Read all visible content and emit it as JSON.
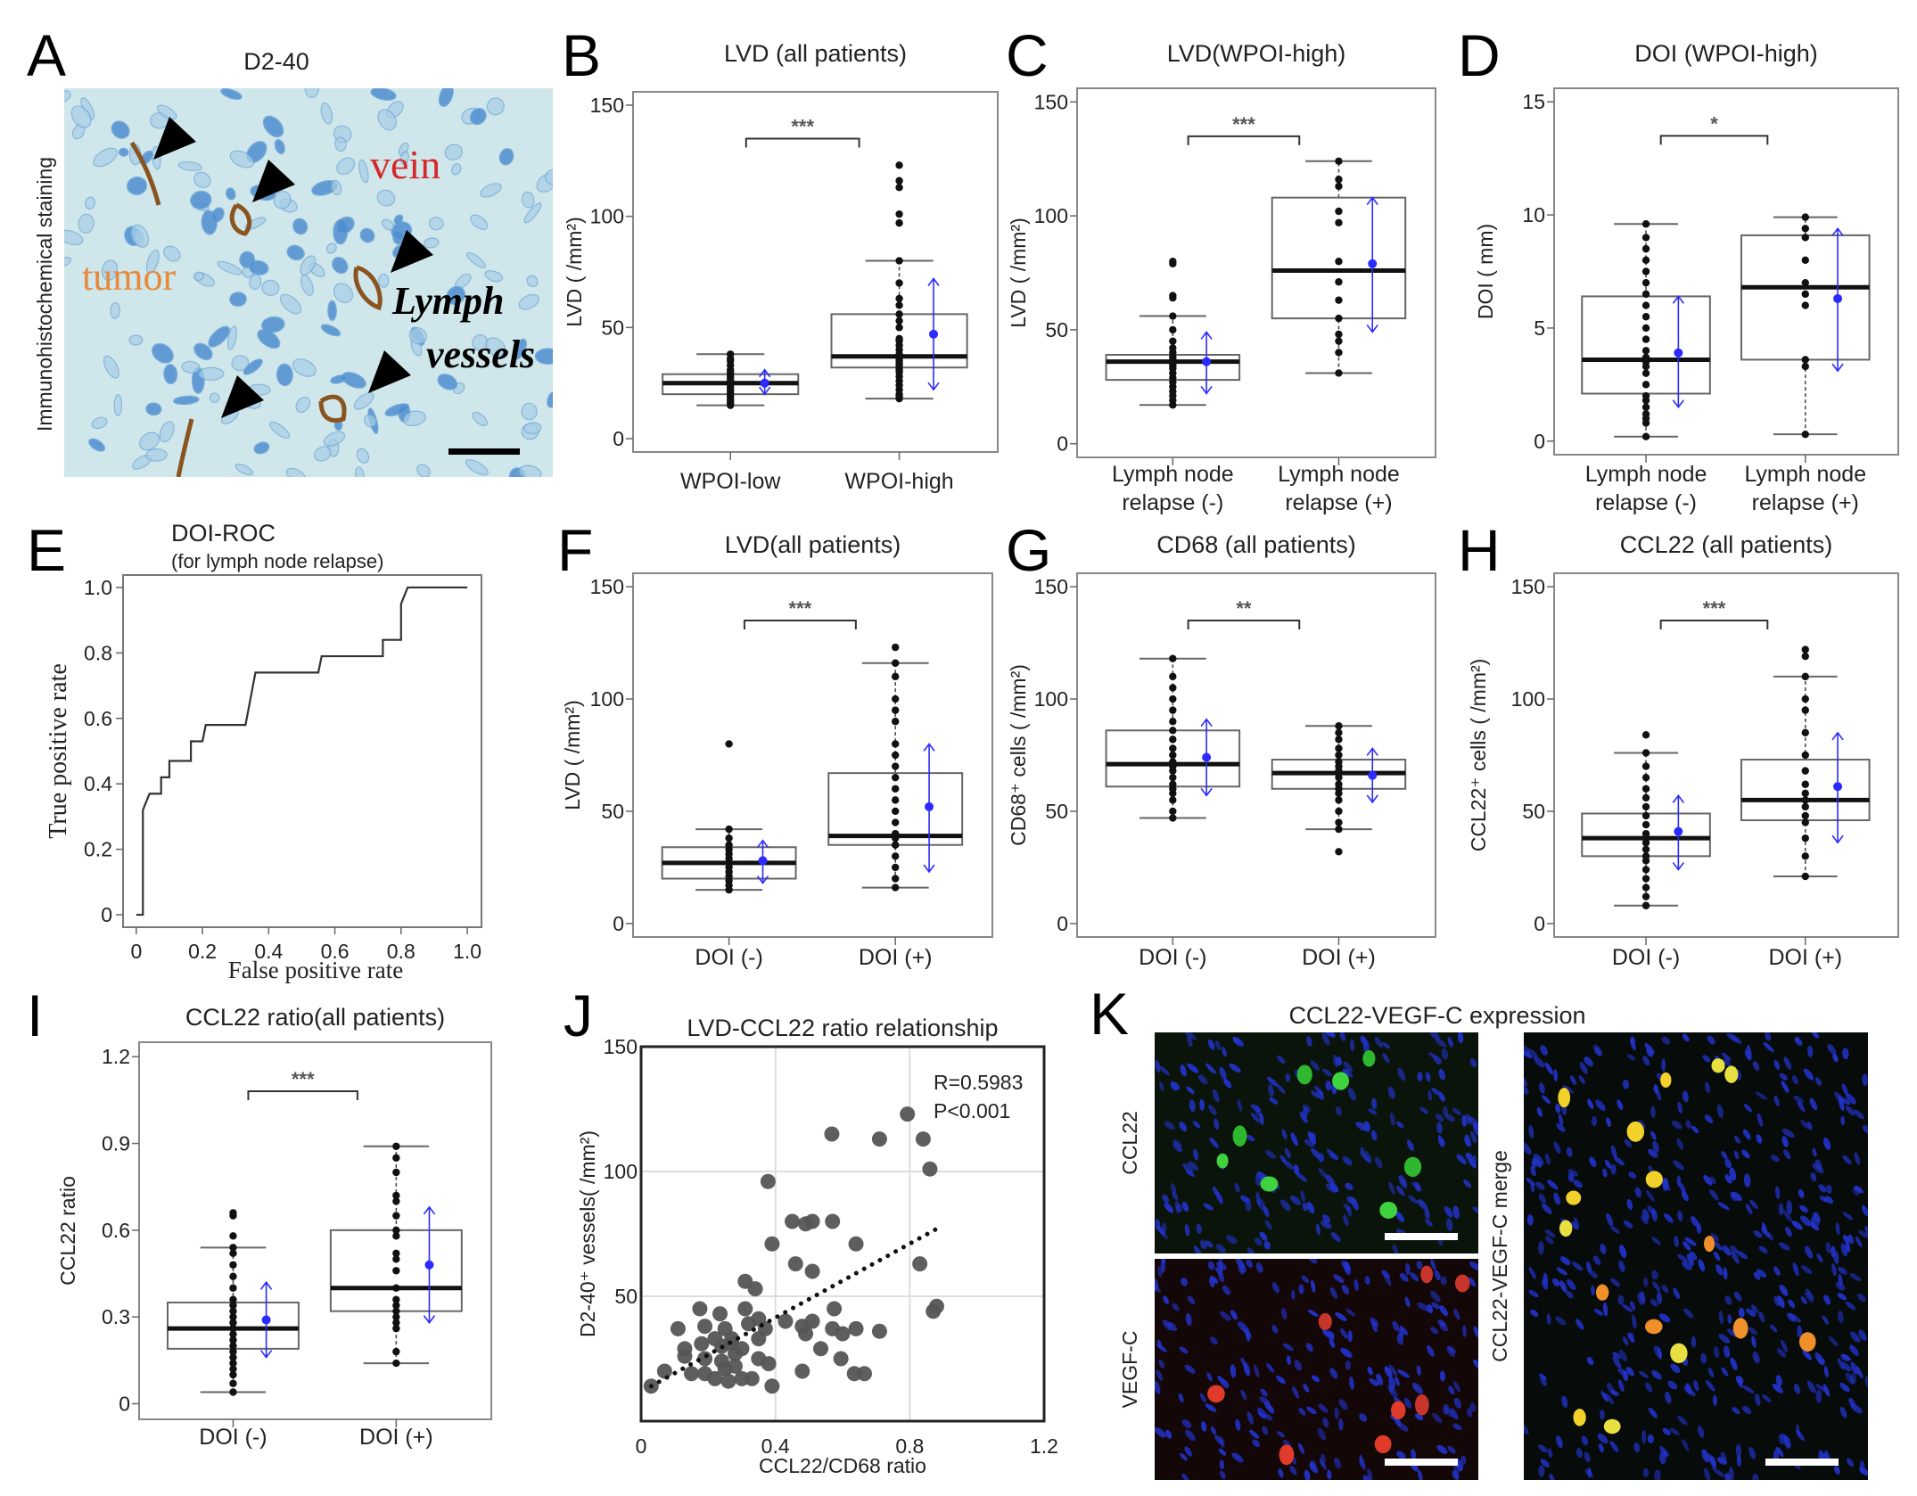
{
  "panel_labels": [
    "A",
    "B",
    "C",
    "D",
    "E",
    "F",
    "G",
    "H",
    "I",
    "J",
    "K"
  ],
  "panel_a": {
    "title": "D2-40",
    "ylabel": "Immunohistochemical staining",
    "annotations": {
      "vein": "vein",
      "tumor": "tumor",
      "lymph1": "Lymph",
      "lymph2": "vessels"
    },
    "colors": {
      "vein": "#d42a2a",
      "tumor": "#e8893a",
      "stain_bg": "#cfe6ea",
      "nuclei": "#4f8fd0",
      "vessel": "#8a5420"
    }
  },
  "panel_k": {
    "title": "CCL22-VEGF-C expression",
    "labels": {
      "ccl22": "CCL22",
      "vegfc": "VEGF-C",
      "merge": "CCL22-VEGF-C merge"
    }
  },
  "colors": {
    "mean_sd": "#2b2bff",
    "scatter_point": "#555555"
  },
  "chart_data": [
    {
      "panel": "B",
      "type": "box",
      "title": "LVD (all patients)",
      "ylabel": "LVD ( /mm²)",
      "ylim": [
        -6,
        156
      ],
      "yticks": [
        0,
        50,
        100,
        150
      ],
      "ytick_labels": [
        "0",
        "50",
        "100",
        "150"
      ],
      "categories": [
        [
          "WPOI-low"
        ],
        [
          "WPOI-high"
        ]
      ],
      "significance": "***",
      "groups": [
        {
          "whisker_low": 15,
          "q1": 20,
          "median": 25,
          "q3": 29,
          "whisker_high": 38,
          "mean": 25,
          "sd_low": 20,
          "sd_high": 31,
          "points": [
            15,
            16,
            17,
            18,
            19,
            20,
            21,
            22,
            23,
            24,
            25,
            25,
            26,
            27,
            28,
            29,
            30,
            31,
            33,
            35,
            36,
            38
          ]
        },
        {
          "whisker_low": 18,
          "q1": 32,
          "median": 37,
          "q3": 56,
          "whisker_high": 80,
          "mean": 47,
          "sd_low": 22,
          "sd_high": 72,
          "points": [
            18,
            19,
            20,
            22,
            24,
            26,
            28,
            30,
            31,
            32,
            33,
            34,
            35,
            36,
            37,
            38,
            40,
            42,
            44,
            45,
            50,
            53,
            56,
            60,
            63,
            70,
            80,
            97,
            101,
            113,
            116,
            123
          ]
        }
      ]
    },
    {
      "panel": "C",
      "type": "box",
      "title": "LVD(WPOI-high)",
      "ylabel": "LVD ( /mm²)",
      "ylim": [
        -6,
        156
      ],
      "yticks": [
        0,
        50,
        100,
        150
      ],
      "ytick_labels": [
        "0",
        "50",
        "100",
        "150"
      ],
      "categories": [
        [
          "Lymph node",
          "relapse (-)"
        ],
        [
          "Lymph node",
          "relapse (+)"
        ]
      ],
      "significance": "***",
      "groups": [
        {
          "whisker_low": 17,
          "q1": 28,
          "median": 36,
          "q3": 39,
          "whisker_high": 56,
          "mean": 36,
          "sd_low": 22,
          "sd_high": 49,
          "points": [
            17,
            19,
            21,
            23,
            25,
            27,
            29,
            31,
            33,
            34,
            35,
            36,
            37,
            38,
            40,
            42,
            45,
            50,
            56,
            64,
            65,
            79,
            80
          ]
        },
        {
          "whisker_low": 31,
          "q1": 55,
          "median": 76,
          "q3": 108,
          "whisker_high": 124,
          "mean": 79,
          "sd_low": 49,
          "sd_high": 108,
          "points": [
            31,
            40,
            45,
            48,
            55,
            63,
            71,
            80,
            97,
            102,
            113,
            116,
            124
          ]
        }
      ]
    },
    {
      "panel": "D",
      "type": "box",
      "title": "DOI (WPOI-high)",
      "ylabel": "DOI ( mm)",
      "ylim": [
        -0.6,
        15.6
      ],
      "yticks": [
        0,
        5,
        10,
        15
      ],
      "ytick_labels": [
        "0",
        "5",
        "10",
        "15"
      ],
      "categories": [
        [
          "Lymph node",
          "relapse (-)"
        ],
        [
          "Lymph node",
          "relapse (+)"
        ]
      ],
      "significance": "*",
      "groups": [
        {
          "whisker_low": 0.2,
          "q1": 2.1,
          "median": 3.6,
          "q3": 6.4,
          "whisker_high": 9.6,
          "mean": 3.9,
          "sd_low": 1.5,
          "sd_high": 6.4,
          "points": [
            0.2,
            0.8,
            1,
            1.2,
            1.5,
            1.8,
            2,
            2.5,
            3,
            3.3,
            3.5,
            3.7,
            4,
            4.5,
            5,
            5.5,
            6,
            6.5,
            7,
            7.5,
            8,
            8.5,
            9,
            9.6
          ]
        },
        {
          "whisker_low": 0.3,
          "q1": 3.6,
          "median": 6.8,
          "q3": 9.1,
          "whisker_high": 9.9,
          "mean": 6.3,
          "sd_low": 3.1,
          "sd_high": 9.4,
          "points": [
            0.3,
            3.3,
            3.6,
            6,
            6.5,
            7,
            8,
            9,
            9.4,
            9.9
          ]
        }
      ]
    },
    {
      "panel": "E",
      "type": "line",
      "title": "DOI-ROC",
      "subtitle": "(for lymph node relapse)",
      "xlabel": "False positive rate",
      "ylabel": "True positive rate",
      "xlim": [
        -0.04,
        1.043
      ],
      "ylim": [
        -0.038,
        1.038
      ],
      "xticks": [
        0,
        0.2,
        0.4,
        0.6,
        0.8,
        1.0
      ],
      "xtick_labels": [
        "0",
        "0.2",
        "0.4",
        "0.6",
        "0.8",
        "1.0"
      ],
      "yticks": [
        0,
        0.2,
        0.4,
        0.6,
        0.8,
        1.0
      ],
      "ytick_labels": [
        "0",
        "0.2",
        "0.4",
        "0.6",
        "0.8",
        "1.0"
      ],
      "x": [
        0,
        0.02,
        0.02,
        0.04,
        0.075,
        0.075,
        0.1,
        0.1,
        0.165,
        0.165,
        0.2,
        0.21,
        0.33,
        0.36,
        0.55,
        0.56,
        0.745,
        0.745,
        0.8,
        0.8,
        0.82,
        1.0
      ],
      "y": [
        0,
        0,
        0.32,
        0.37,
        0.37,
        0.42,
        0.42,
        0.47,
        0.47,
        0.53,
        0.53,
        0.58,
        0.58,
        0.74,
        0.74,
        0.79,
        0.79,
        0.84,
        0.84,
        0.95,
        1.0,
        1.0
      ]
    },
    {
      "panel": "F",
      "type": "box",
      "title": "LVD(all patients)",
      "ylabel": "LVD ( /mm²)",
      "ylim": [
        -6,
        156
      ],
      "yticks": [
        0,
        50,
        100,
        150
      ],
      "ytick_labels": [
        "0",
        "50",
        "100",
        "150"
      ],
      "categories": [
        [
          "DOI (-)"
        ],
        [
          "DOI (+)"
        ]
      ],
      "significance": "***",
      "groups": [
        {
          "whisker_low": 15,
          "q1": 20,
          "median": 27,
          "q3": 34,
          "whisker_high": 42,
          "mean": 28,
          "sd_low": 18,
          "sd_high": 37,
          "points": [
            15,
            17,
            19,
            21,
            23,
            25,
            27,
            29,
            31,
            33,
            35,
            38,
            42,
            80
          ]
        },
        {
          "whisker_low": 16,
          "q1": 35,
          "median": 39,
          "q3": 67,
          "whisker_high": 116,
          "mean": 52,
          "sd_low": 23,
          "sd_high": 80,
          "points": [
            16,
            20,
            25,
            30,
            35,
            38,
            40,
            45,
            50,
            55,
            60,
            65,
            70,
            75,
            80,
            90,
            95,
            100,
            110,
            116,
            123
          ]
        }
      ]
    },
    {
      "panel": "G",
      "type": "box",
      "title": "CD68 (all patients)",
      "ylabel": "CD68⁺ cells ( /mm²)",
      "ylim": [
        -6,
        156
      ],
      "yticks": [
        0,
        50,
        100,
        150
      ],
      "ytick_labels": [
        "0",
        "50",
        "100",
        "150"
      ],
      "categories": [
        [
          "DOI (-)"
        ],
        [
          "DOI (+)"
        ]
      ],
      "significance": "**",
      "groups": [
        {
          "whisker_low": 47,
          "q1": 61,
          "median": 71,
          "q3": 86,
          "whisker_high": 118,
          "mean": 74,
          "sd_low": 57,
          "sd_high": 91,
          "points": [
            47,
            50,
            55,
            58,
            60,
            62,
            65,
            68,
            70,
            72,
            75,
            78,
            82,
            86,
            90,
            95,
            100,
            105,
            110,
            118
          ]
        },
        {
          "whisker_low": 42,
          "q1": 60,
          "median": 67,
          "q3": 73,
          "whisker_high": 88,
          "mean": 66,
          "sd_low": 54,
          "sd_high": 78,
          "points": [
            32,
            42,
            45,
            50,
            55,
            58,
            60,
            62,
            65,
            67,
            68,
            70,
            72,
            75,
            78,
            82,
            85,
            88
          ]
        }
      ]
    },
    {
      "panel": "H",
      "type": "box",
      "title": "CCL22 (all patients)",
      "ylabel": "CCL22⁺ cells ( /mm²)",
      "ylim": [
        -6,
        156
      ],
      "yticks": [
        0,
        50,
        100,
        150
      ],
      "ytick_labels": [
        "0",
        "50",
        "100",
        "150"
      ],
      "categories": [
        [
          "DOI (-)"
        ],
        [
          "DOI (+)"
        ]
      ],
      "significance": "***",
      "groups": [
        {
          "whisker_low": 8,
          "q1": 30,
          "median": 38,
          "q3": 49,
          "whisker_high": 76,
          "mean": 41,
          "sd_low": 24,
          "sd_high": 57,
          "points": [
            8,
            12,
            16,
            20,
            24,
            28,
            30,
            33,
            36,
            38,
            40,
            44,
            48,
            52,
            56,
            60,
            65,
            70,
            76,
            84
          ]
        },
        {
          "whisker_low": 21,
          "q1": 46,
          "median": 55,
          "q3": 73,
          "whisker_high": 110,
          "mean": 61,
          "sd_low": 36,
          "sd_high": 85,
          "points": [
            21,
            30,
            38,
            45,
            48,
            52,
            55,
            58,
            62,
            68,
            75,
            85,
            95,
            100,
            110,
            119,
            122
          ]
        }
      ]
    },
    {
      "panel": "I",
      "type": "box",
      "title": "CCL22 ratio(all patients)",
      "ylabel": "CCL22 ratio",
      "ylim": [
        -0.054,
        1.25
      ],
      "yticks": [
        0,
        0.3,
        0.6,
        0.9,
        1.2
      ],
      "ytick_labels": [
        "0",
        "0.3",
        "0.6",
        "0.9",
        "1.2"
      ],
      "categories": [
        [
          "DOI (-)"
        ],
        [
          "DOI (+)"
        ]
      ],
      "significance": "***",
      "groups": [
        {
          "whisker_low": 0.04,
          "q1": 0.19,
          "median": 0.26,
          "q3": 0.35,
          "whisker_high": 0.54,
          "mean": 0.29,
          "sd_low": 0.16,
          "sd_high": 0.42,
          "points": [
            0.04,
            0.07,
            0.1,
            0.12,
            0.14,
            0.16,
            0.18,
            0.2,
            0.22,
            0.24,
            0.26,
            0.28,
            0.3,
            0.32,
            0.34,
            0.36,
            0.4,
            0.44,
            0.48,
            0.52,
            0.54,
            0.58,
            0.65,
            0.66
          ]
        },
        {
          "whisker_low": 0.14,
          "q1": 0.32,
          "median": 0.4,
          "q3": 0.6,
          "whisker_high": 0.89,
          "mean": 0.48,
          "sd_low": 0.28,
          "sd_high": 0.68,
          "points": [
            0.14,
            0.18,
            0.26,
            0.28,
            0.3,
            0.32,
            0.34,
            0.36,
            0.4,
            0.46,
            0.5,
            0.52,
            0.58,
            0.6,
            0.65,
            0.7,
            0.72,
            0.8,
            0.85,
            0.89
          ]
        }
      ]
    },
    {
      "panel": "J",
      "type": "scatter",
      "title": "LVD-CCL22 ratio relationship",
      "xlabel": "CCL22/CD68 ratio",
      "ylabel": "D2-40⁺ vessels( /mm²)",
      "xlim": [
        0,
        1.2
      ],
      "ylim": [
        0,
        150
      ],
      "xticks": [
        0,
        0.4,
        0.8,
        1.2
      ],
      "xtick_labels": [
        "0",
        "0.4",
        "0.8",
        "1.2"
      ],
      "yticks": [
        50,
        100,
        150
      ],
      "ytick_labels": [
        "50",
        "100",
        "150"
      ],
      "grid": true,
      "annotation": [
        "R=0.5983",
        "P<0.001"
      ],
      "trendline": {
        "x": [
          0.03,
          0.88
        ],
        "y": [
          14,
          77
        ]
      },
      "x": [
        0.568,
        0.793,
        0.71,
        0.84,
        0.86,
        0.378,
        0.45,
        0.49,
        0.51,
        0.57,
        0.39,
        0.64,
        0.46,
        0.51,
        0.83,
        0.31,
        0.34,
        0.87,
        0.88,
        0.575,
        0.175,
        0.235,
        0.31,
        0.43,
        0.11,
        0.19,
        0.25,
        0.32,
        0.35,
        0.37,
        0.48,
        0.51,
        0.49,
        0.57,
        0.6,
        0.64,
        0.71,
        0.13,
        0.13,
        0.18,
        0.22,
        0.27,
        0.3,
        0.35,
        0.535,
        0.19,
        0.24,
        0.28,
        0.35,
        0.38,
        0.595,
        0.07,
        0.15,
        0.19,
        0.22,
        0.26,
        0.3,
        0.33,
        0.39,
        0.03,
        0.48,
        0.635,
        0.665,
        0.25,
        0.28,
        0.24,
        0.27
      ],
      "y": [
        115,
        123,
        113,
        113,
        101,
        96,
        80,
        79,
        80,
        80,
        71,
        71,
        63,
        60,
        63,
        56,
        53,
        44,
        46,
        45,
        45,
        43,
        45,
        40,
        37,
        38,
        37,
        39,
        41,
        37,
        38,
        40,
        35,
        37,
        35,
        37,
        36,
        29,
        26,
        31,
        33,
        33,
        29,
        33,
        29,
        25,
        24,
        27,
        25,
        23,
        25,
        20,
        19,
        19,
        17,
        16,
        17,
        17,
        14,
        14,
        20,
        19,
        19,
        21,
        22,
        30,
        31
      ]
    }
  ]
}
